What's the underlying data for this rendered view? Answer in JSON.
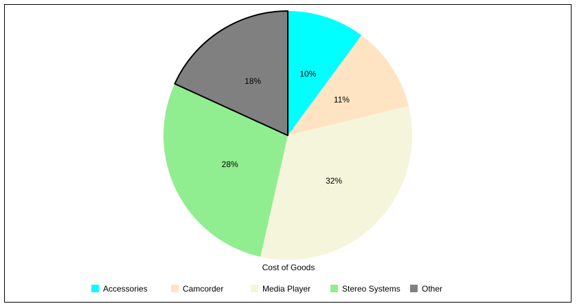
{
  "chart_data": {
    "type": "pie",
    "title": "Cost of Goods",
    "slices": [
      {
        "name": "Accessories",
        "value": 10,
        "label": "10%",
        "color": "#00ffff"
      },
      {
        "name": "Camcorder",
        "value": 11,
        "label": "11%",
        "color": "#ffe4c4"
      },
      {
        "name": "Media Player",
        "value": 32,
        "label": "32%",
        "color": "#f5f5dc"
      },
      {
        "name": "Stereo Systems",
        "value": 28,
        "label": "28%",
        "color": "#90ee90"
      },
      {
        "name": "Other",
        "value": 18,
        "label": "18%",
        "color": "#808080"
      }
    ],
    "legend_position": "bottom",
    "highlighted_slice": "Other"
  }
}
